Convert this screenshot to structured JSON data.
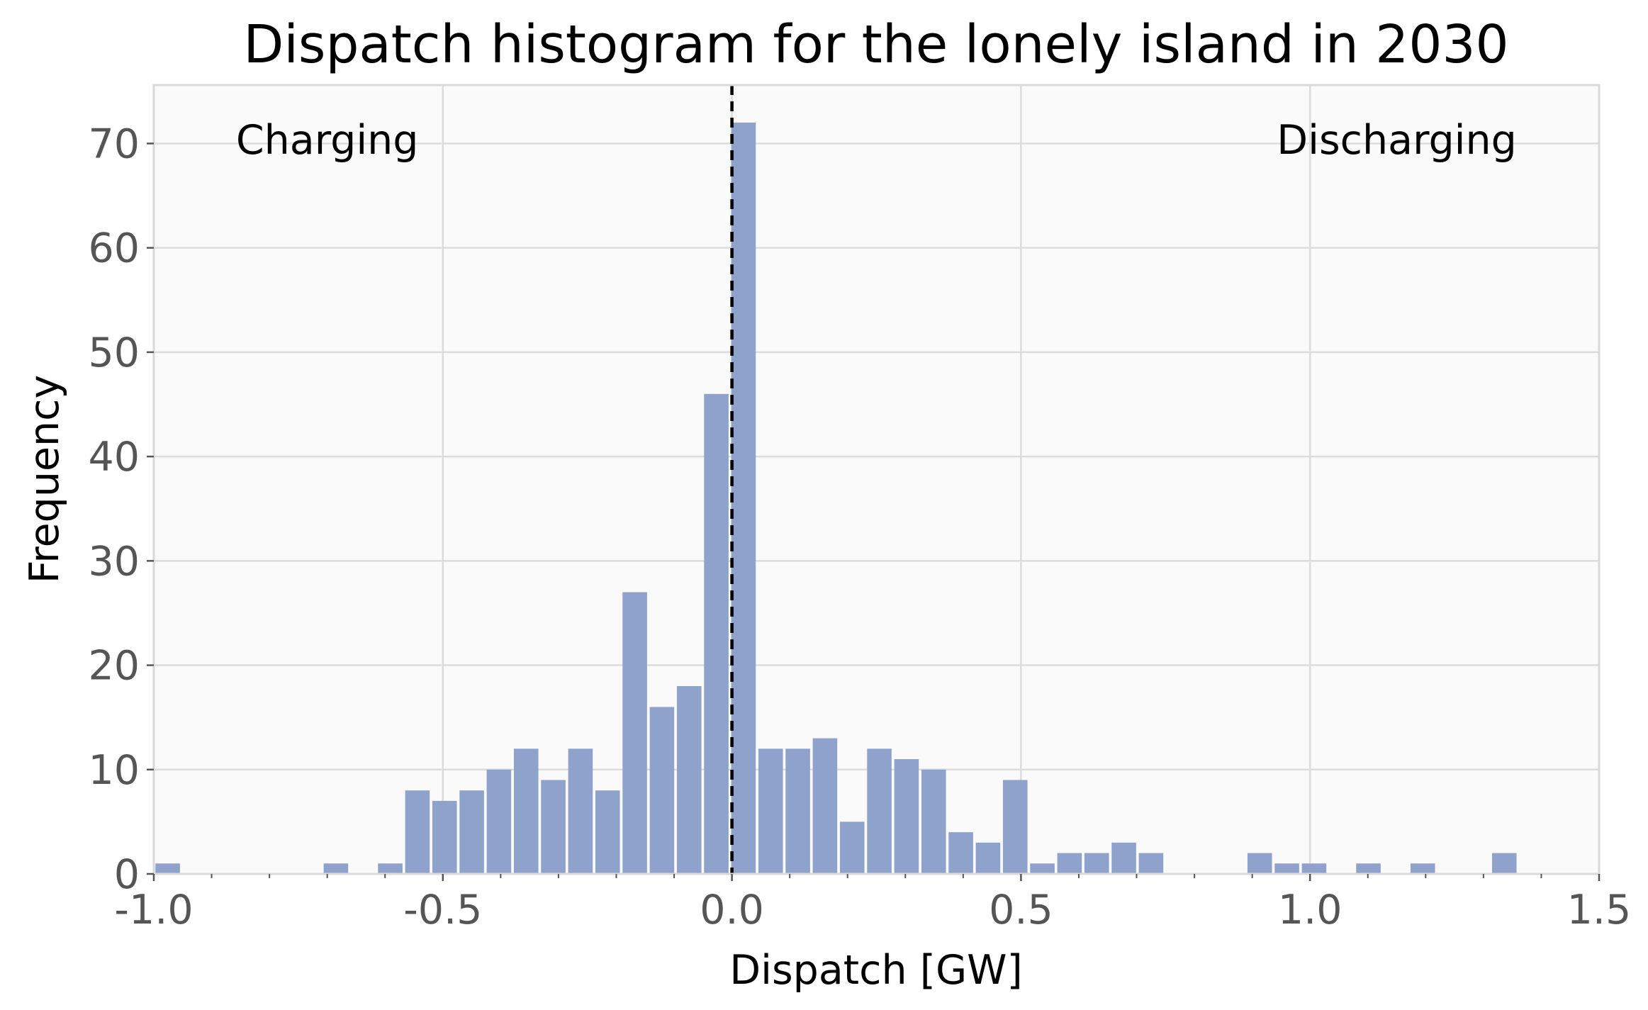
{
  "chart_data": {
    "type": "bar",
    "title": "Dispatch histogram for the lonely island in 2030",
    "xlabel": "Dispatch [GW]",
    "ylabel": "Frequency",
    "xlim": [
      -1.0,
      1.5
    ],
    "ylim": [
      0,
      75.6
    ],
    "bin_width": 0.04731,
    "x_ticks": [
      -1.0,
      -0.5,
      0.0,
      0.5,
      1.0,
      1.5
    ],
    "x_tick_labels": [
      "-1.0",
      "-0.5",
      "0.0",
      "0.5",
      "1.0",
      "1.5"
    ],
    "y_ticks": [
      0,
      10,
      20,
      30,
      40,
      50,
      60,
      70
    ],
    "y_tick_labels": [
      "0",
      "10",
      "20",
      "30",
      "40",
      "50",
      "60",
      "70"
    ],
    "grid": true,
    "reference_line": {
      "x": 0.0,
      "style": "dashed",
      "color": "#000000"
    },
    "annotations": [
      {
        "text": "Charging",
        "x": -0.7,
        "y": 69
      },
      {
        "text": "Discharging",
        "x": 1.15,
        "y": 69
      }
    ],
    "bar_color": "#8fa2cc",
    "bars": [
      {
        "x": -0.976,
        "y": 1
      },
      {
        "x": -0.685,
        "y": 1
      },
      {
        "x": -0.591,
        "y": 1
      },
      {
        "x": -0.544,
        "y": 8
      },
      {
        "x": -0.497,
        "y": 7
      },
      {
        "x": -0.45,
        "y": 8
      },
      {
        "x": -0.403,
        "y": 10
      },
      {
        "x": -0.356,
        "y": 12
      },
      {
        "x": -0.309,
        "y": 9
      },
      {
        "x": -0.262,
        "y": 12
      },
      {
        "x": -0.215,
        "y": 8
      },
      {
        "x": -0.168,
        "y": 27
      },
      {
        "x": -0.121,
        "y": 16
      },
      {
        "x": -0.074,
        "y": 18
      },
      {
        "x": -0.027,
        "y": 46
      },
      {
        "x": 0.02,
        "y": 72
      },
      {
        "x": 0.067,
        "y": 12
      },
      {
        "x": 0.114,
        "y": 12
      },
      {
        "x": 0.161,
        "y": 13
      },
      {
        "x": 0.208,
        "y": 5
      },
      {
        "x": 0.255,
        "y": 12
      },
      {
        "x": 0.302,
        "y": 11
      },
      {
        "x": 0.349,
        "y": 10
      },
      {
        "x": 0.396,
        "y": 4
      },
      {
        "x": 0.443,
        "y": 3
      },
      {
        "x": 0.49,
        "y": 9
      },
      {
        "x": 0.537,
        "y": 1
      },
      {
        "x": 0.584,
        "y": 2
      },
      {
        "x": 0.631,
        "y": 2
      },
      {
        "x": 0.678,
        "y": 3
      },
      {
        "x": 0.725,
        "y": 2
      },
      {
        "x": 0.913,
        "y": 2
      },
      {
        "x": 0.96,
        "y": 1
      },
      {
        "x": 1.007,
        "y": 1
      },
      {
        "x": 1.101,
        "y": 1
      },
      {
        "x": 1.195,
        "y": 1
      },
      {
        "x": 1.336,
        "y": 2
      }
    ]
  }
}
